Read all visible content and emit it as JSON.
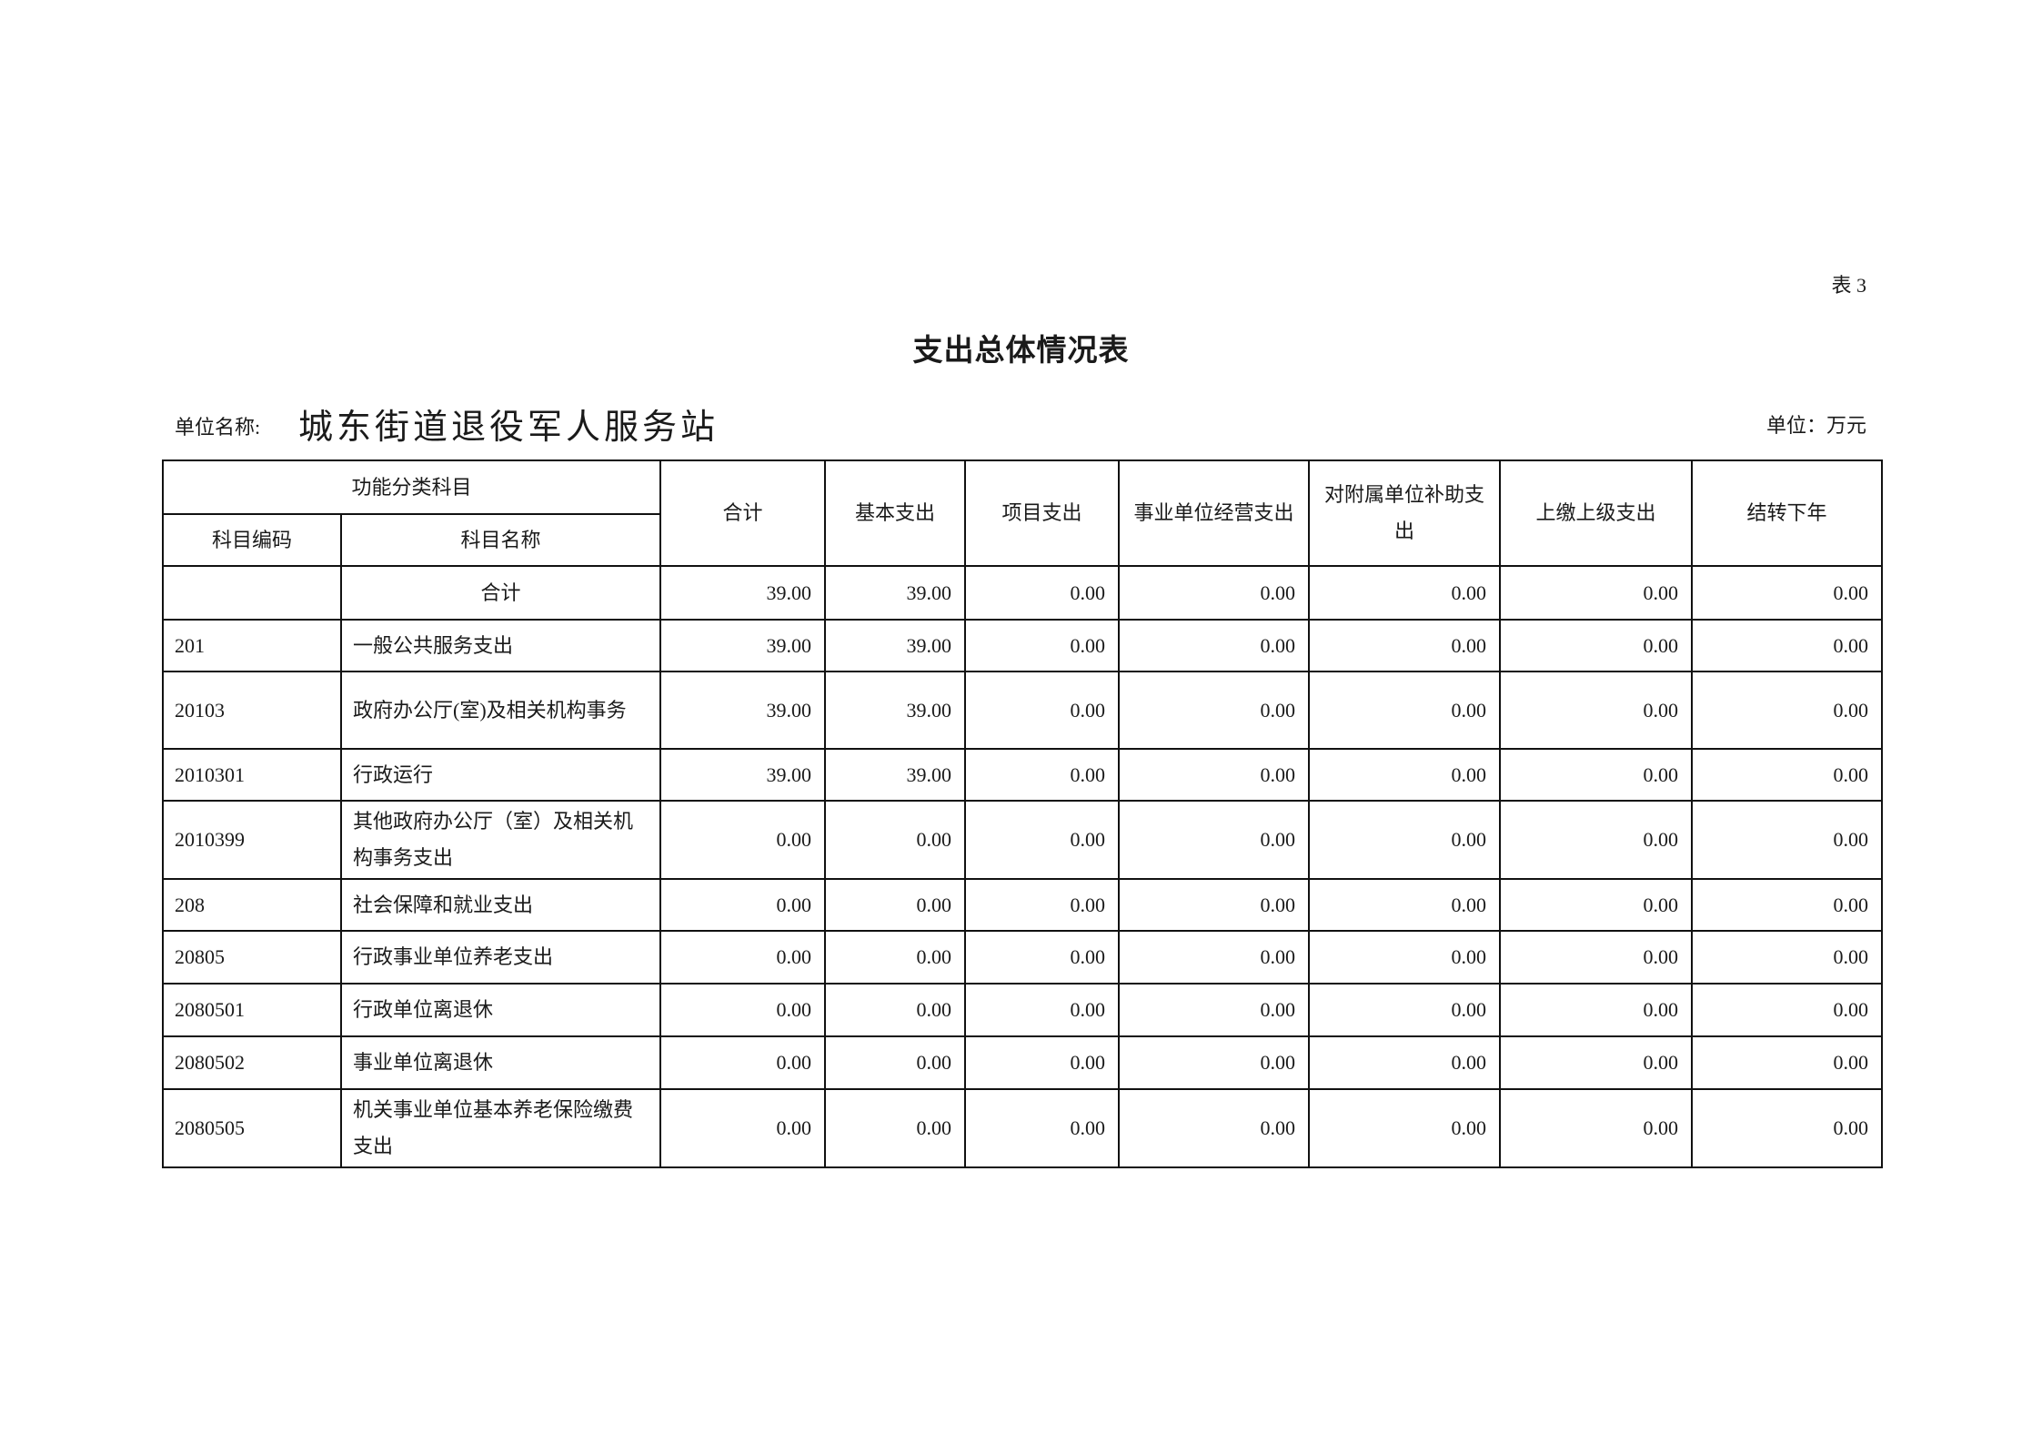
{
  "table_no": "表 3",
  "title": "支出总体情况表",
  "unit_label": "单位名称:",
  "unit_name": "城东街道退役军人服务站",
  "currency": "单位：万元",
  "headers": {
    "group": "功能分类科目",
    "code": "科目编码",
    "name": "科目名称",
    "cols": [
      "合计",
      "基本支出",
      "项目支出",
      "事业单位经营支出",
      "对附属单位补助支出",
      "上缴上级支出",
      "结转下年"
    ]
  },
  "rows": [
    {
      "code": "",
      "name": "合计",
      "values": [
        "39.00",
        "39.00",
        "0.00",
        "0.00",
        "0.00",
        "0.00",
        "0.00"
      ]
    },
    {
      "code": "201",
      "name": "一般公共服务支出",
      "values": [
        "39.00",
        "39.00",
        "0.00",
        "0.00",
        "0.00",
        "0.00",
        "0.00"
      ]
    },
    {
      "code": "20103",
      "name": "政府办公厅(室)及相关机构事务",
      "values": [
        "39.00",
        "39.00",
        "0.00",
        "0.00",
        "0.00",
        "0.00",
        "0.00"
      ]
    },
    {
      "code": "2010301",
      "name": "行政运行",
      "values": [
        "39.00",
        "39.00",
        "0.00",
        "0.00",
        "0.00",
        "0.00",
        "0.00"
      ]
    },
    {
      "code": "2010399",
      "name": "其他政府办公厅（室）及相关机构事务支出",
      "values": [
        "0.00",
        "0.00",
        "0.00",
        "0.00",
        "0.00",
        "0.00",
        "0.00"
      ]
    },
    {
      "code": "208",
      "name": "社会保障和就业支出",
      "values": [
        "0.00",
        "0.00",
        "0.00",
        "0.00",
        "0.00",
        "0.00",
        "0.00"
      ]
    },
    {
      "code": "20805",
      "name": "行政事业单位养老支出",
      "values": [
        "0.00",
        "0.00",
        "0.00",
        "0.00",
        "0.00",
        "0.00",
        "0.00"
      ]
    },
    {
      "code": "2080501",
      "name": "行政单位离退休",
      "values": [
        "0.00",
        "0.00",
        "0.00",
        "0.00",
        "0.00",
        "0.00",
        "0.00"
      ]
    },
    {
      "code": "2080502",
      "name": "事业单位离退休",
      "values": [
        "0.00",
        "0.00",
        "0.00",
        "0.00",
        "0.00",
        "0.00",
        "0.00"
      ]
    },
    {
      "code": "2080505",
      "name": "机关事业单位基本养老保险缴费支出",
      "values": [
        "0.00",
        "0.00",
        "0.00",
        "0.00",
        "0.00",
        "0.00",
        "0.00"
      ]
    }
  ]
}
